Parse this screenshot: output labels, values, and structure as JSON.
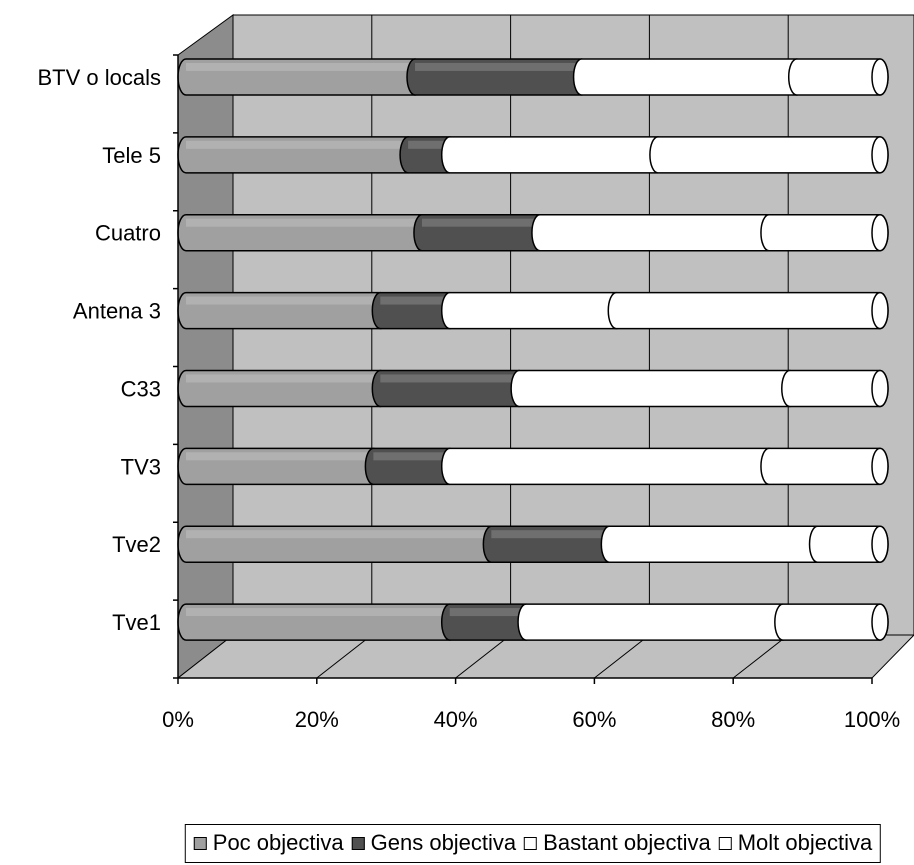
{
  "chart_data": {
    "type": "bar",
    "orientation": "horizontal",
    "stacked": "100%",
    "three_d": true,
    "categories": [
      "Tve1",
      "Tve2",
      "TV3",
      "C33",
      "Antena 3",
      "Cuatro",
      "Tele 5",
      "BTV o locals"
    ],
    "series": [
      {
        "name": "Poc objectiva",
        "color": "#a0a0a0",
        "values": [
          38,
          44,
          27,
          28,
          28,
          34,
          32,
          33
        ]
      },
      {
        "name": "Gens objectiva",
        "color": "#505050",
        "values": [
          11,
          17,
          11,
          20,
          10,
          17,
          6,
          24
        ]
      },
      {
        "name": "Bastant objectiva",
        "color": "#ffffff",
        "values": [
          37,
          30,
          46,
          39,
          24,
          33,
          30,
          31
        ]
      },
      {
        "name": "Molt objectiva",
        "color": "#ffffff",
        "values": [
          14,
          9,
          16,
          13,
          38,
          16,
          32,
          12
        ]
      }
    ],
    "x_ticks": [
      "0%",
      "20%",
      "40%",
      "60%",
      "80%",
      "100%"
    ],
    "xlim": [
      0,
      100
    ],
    "grid": true,
    "legend_position": "bottom"
  }
}
